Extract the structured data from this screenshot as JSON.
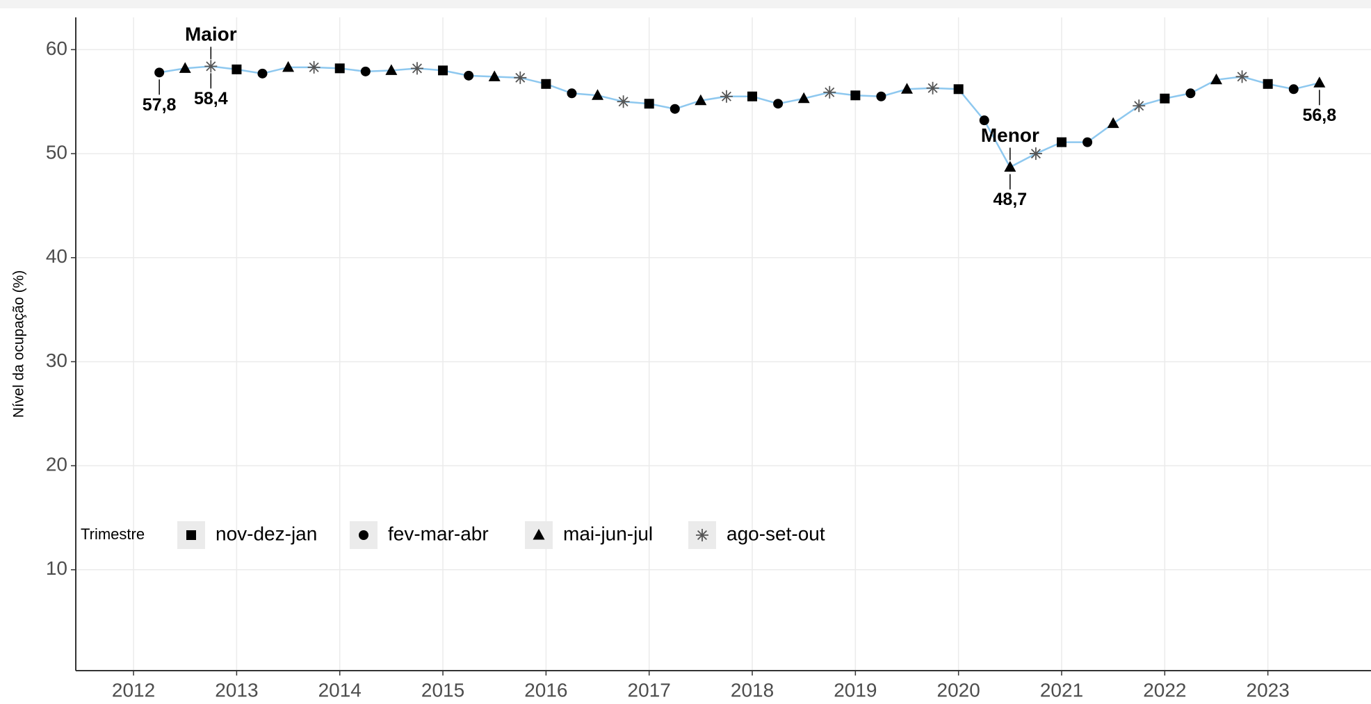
{
  "chart_data": {
    "type": "line",
    "y_label": "Nível da ocupação (%)",
    "x": [
      2012.25,
      2012.5,
      2012.75,
      2013,
      2013.25,
      2013.5,
      2013.75,
      2014,
      2014.25,
      2014.5,
      2014.75,
      2015,
      2015.25,
      2015.5,
      2015.75,
      2016,
      2016.25,
      2016.5,
      2016.75,
      2017,
      2017.25,
      2017.5,
      2017.75,
      2018,
      2018.25,
      2018.5,
      2018.75,
      2019,
      2019.25,
      2019.5,
      2019.75,
      2020,
      2020.25,
      2020.5,
      2020.75,
      2021,
      2021.25,
      2021.5,
      2021.75,
      2022,
      2022.25,
      2022.5,
      2022.75,
      2023,
      2023.25,
      2023.5
    ],
    "values": [
      57.8,
      58.2,
      58.4,
      58.1,
      57.7,
      58.3,
      58.3,
      58.2,
      57.9,
      58.0,
      58.2,
      58.0,
      57.5,
      57.4,
      57.3,
      56.7,
      55.8,
      55.6,
      55.0,
      54.8,
      54.3,
      55.1,
      55.5,
      55.5,
      54.8,
      55.3,
      55.9,
      55.6,
      55.5,
      56.2,
      56.3,
      56.2,
      53.2,
      48.7,
      50.0,
      51.1,
      51.1,
      52.9,
      54.6,
      55.3,
      55.8,
      57.1,
      57.4,
      56.7,
      56.2,
      56.8
    ],
    "trimestre": [
      "fev-mar-abr",
      "mai-jun-jul",
      "ago-set-out",
      "nov-dez-jan",
      "fev-mar-abr",
      "mai-jun-jul",
      "ago-set-out",
      "nov-dez-jan",
      "fev-mar-abr",
      "mai-jun-jul",
      "ago-set-out",
      "nov-dez-jan",
      "fev-mar-abr",
      "mai-jun-jul",
      "ago-set-out",
      "nov-dez-jan",
      "fev-mar-abr",
      "mai-jun-jul",
      "ago-set-out",
      "nov-dez-jan",
      "fev-mar-abr",
      "mai-jun-jul",
      "ago-set-out",
      "nov-dez-jan",
      "fev-mar-abr",
      "mai-jun-jul",
      "ago-set-out",
      "nov-dez-jan",
      "fev-mar-abr",
      "mai-jun-jul",
      "ago-set-out",
      "nov-dez-jan",
      "fev-mar-abr",
      "mai-jun-jul",
      "ago-set-out",
      "nov-dez-jan",
      "fev-mar-abr",
      "mai-jun-jul",
      "ago-set-out",
      "nov-dez-jan",
      "fev-mar-abr",
      "mai-jun-jul",
      "ago-set-out",
      "nov-dez-jan",
      "fev-mar-abr",
      "mai-jun-jul"
    ],
    "value_labels": [
      "57,8",
      null,
      "58,4",
      null,
      null,
      null,
      null,
      null,
      null,
      null,
      null,
      null,
      null,
      null,
      null,
      null,
      null,
      null,
      null,
      null,
      null,
      null,
      null,
      null,
      null,
      null,
      null,
      null,
      null,
      null,
      null,
      null,
      null,
      "48,7",
      null,
      null,
      null,
      null,
      null,
      null,
      null,
      null,
      null,
      null,
      null,
      "56,8"
    ],
    "annotations": [
      {
        "text": "Maior",
        "x": 2012.75
      },
      {
        "text": "Menor",
        "x": 2020.5
      }
    ],
    "line_color": "#8ec8ef",
    "legend": {
      "title": "Trimestre",
      "position": "bottom-left",
      "items": [
        {
          "name": "nov-dez-jan",
          "shape": "square"
        },
        {
          "name": "fev-mar-abr",
          "shape": "circle"
        },
        {
          "name": "mai-jun-jul",
          "shape": "triangle"
        },
        {
          "name": "ago-set-out",
          "shape": "asterisk"
        }
      ]
    },
    "xlim": [
      2011.44,
      2024.0
    ],
    "xticks": [
      2012,
      2013,
      2014,
      2015,
      2016,
      2017,
      2018,
      2019,
      2020,
      2021,
      2022,
      2023
    ],
    "ylim": [
      0.3,
      63.1
    ],
    "yticks": [
      10,
      20,
      30,
      40,
      50,
      60
    ],
    "grid": true
  }
}
